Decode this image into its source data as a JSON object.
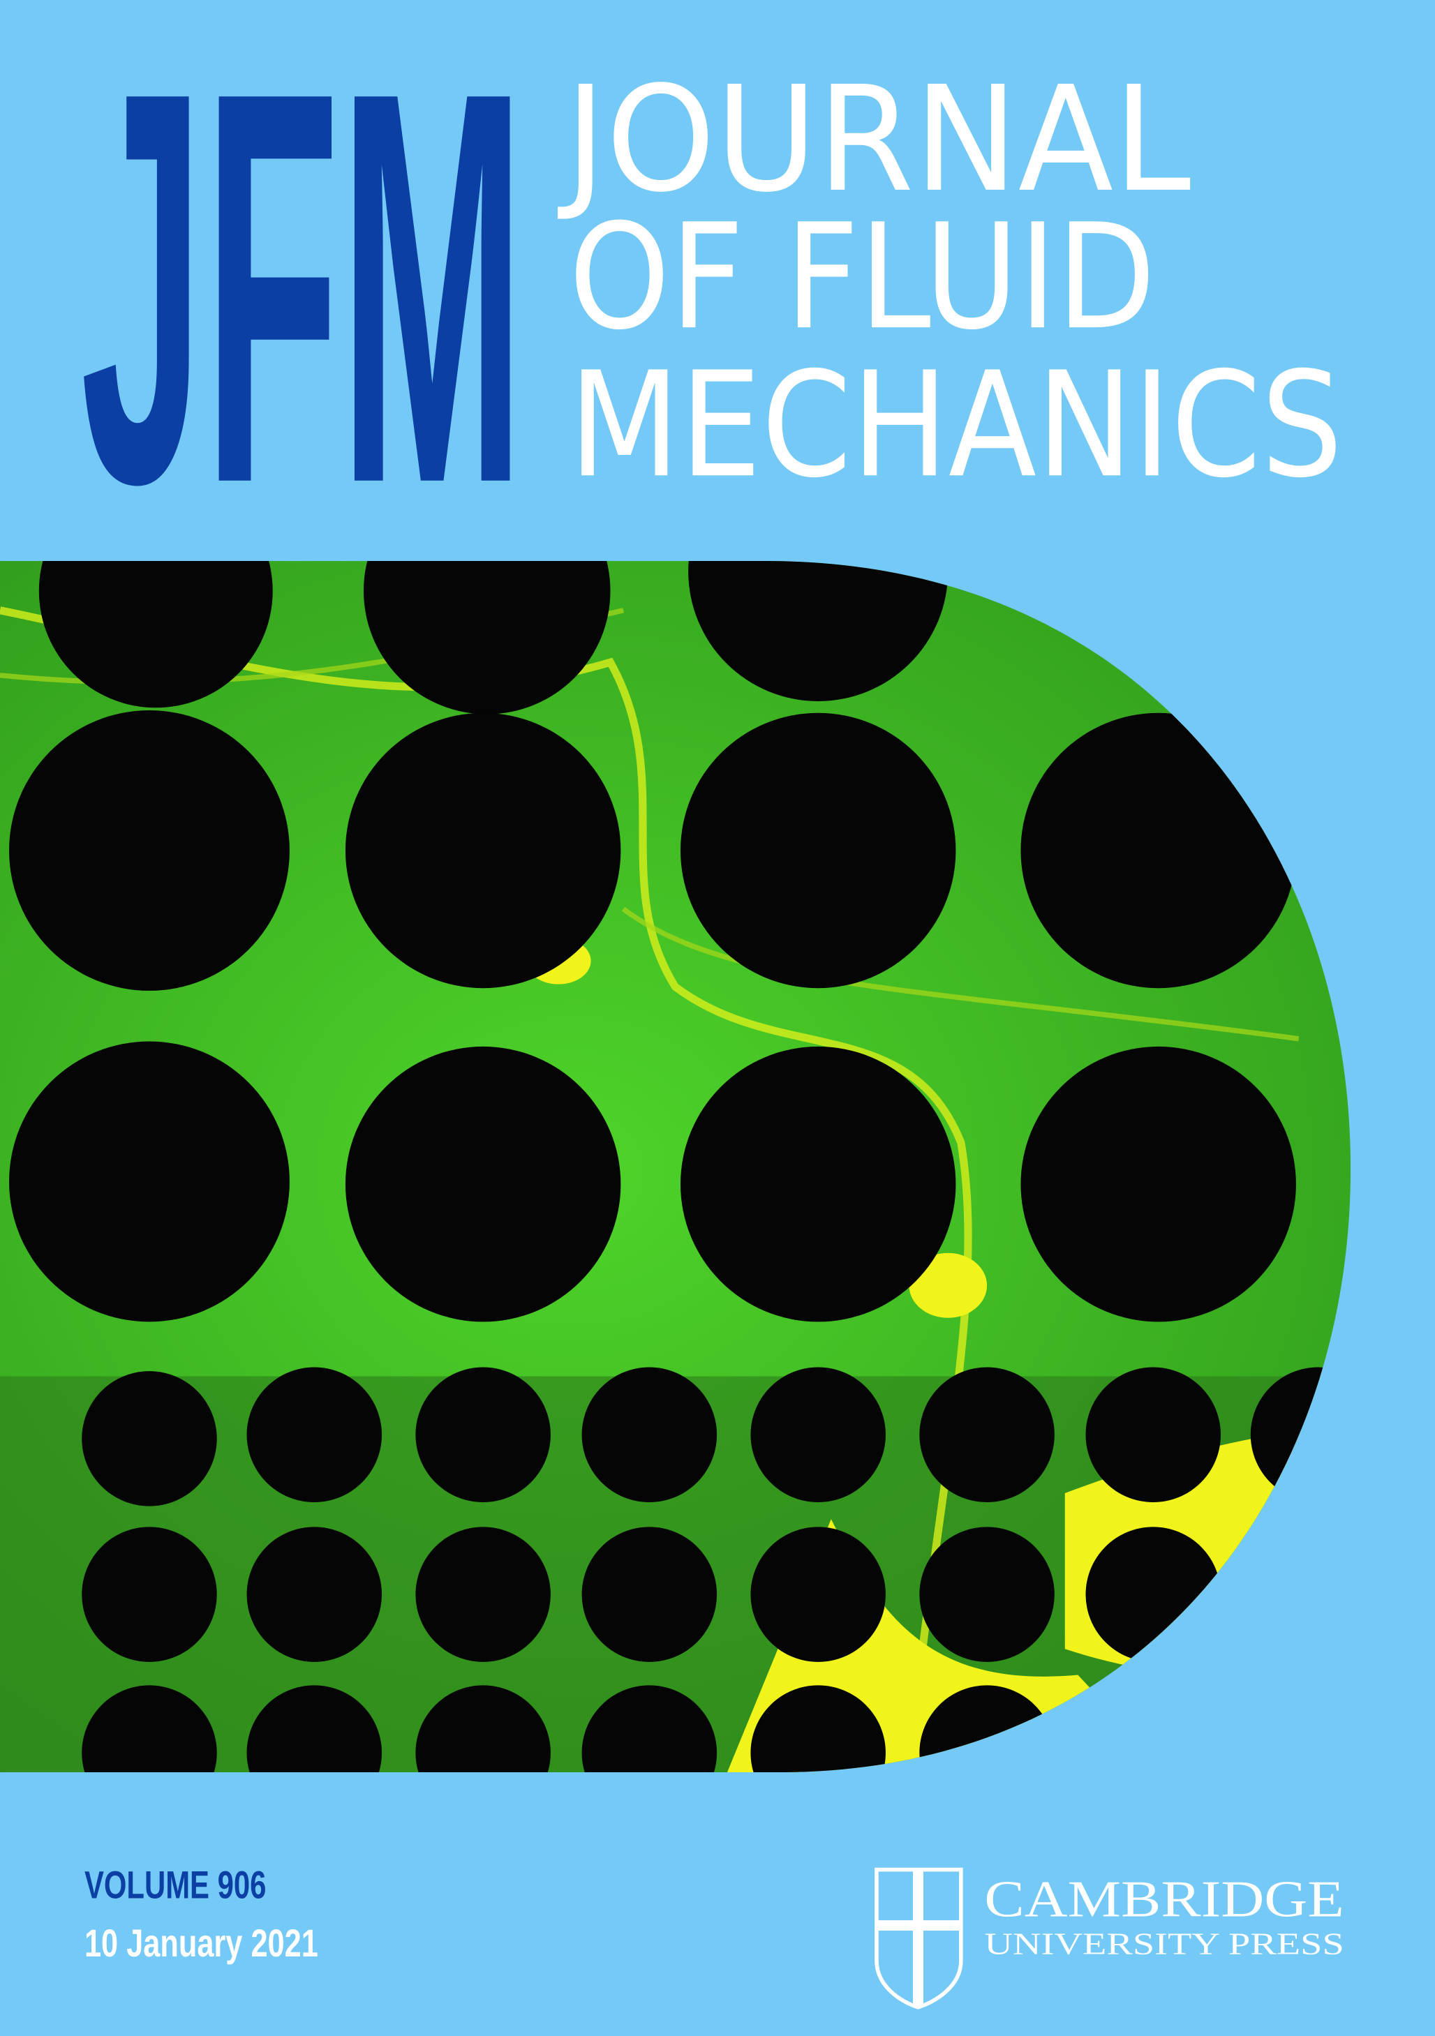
{
  "logo": "JFM",
  "title": [
    "JOURNAL",
    "OF FLUID",
    "MECHANICS"
  ],
  "volume": "VOLUME 906",
  "date": "10 January 2021",
  "publisher": {
    "name": "CAMBRIDGE",
    "subtitle": "UNIVERSITY PRESS"
  }
}
